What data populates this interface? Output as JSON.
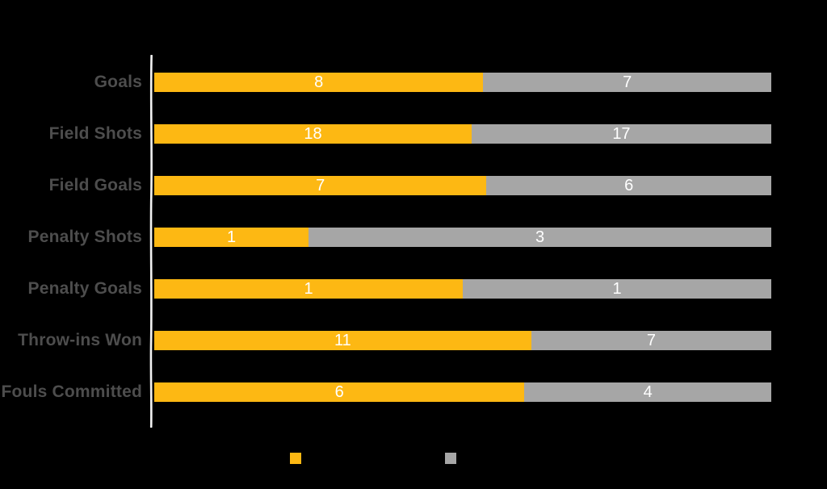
{
  "colors": {
    "background": "#000000",
    "series_yellow": "#fdb813",
    "series_gray": "#a6a6a6",
    "category_label": "#4d4d4d",
    "value_label": "#ffffff",
    "axis_line": "#f2f2f2"
  },
  "chart_data": {
    "type": "bar",
    "orientation": "horizontal",
    "stacked": true,
    "normalized_to_100_percent": true,
    "title": "",
    "xlabel": "",
    "ylabel": "",
    "grid": "off",
    "categories": [
      "Goals",
      "Field Shots",
      "Field Goals",
      "Penalty Shots",
      "Penalty Goals",
      "Throw-ins Won",
      "Fouls Committed"
    ],
    "series": [
      {
        "name": "",
        "color": "#fdb813",
        "values": [
          8,
          18,
          7,
          1,
          1,
          11,
          6
        ]
      },
      {
        "name": "",
        "color": "#a6a6a6",
        "values": [
          7,
          17,
          6,
          3,
          1,
          7,
          4
        ]
      }
    ],
    "value_labels_shown": true,
    "legend": {
      "position": "bottom",
      "items": [
        {
          "label": "",
          "color": "#fdb813"
        },
        {
          "label": "",
          "color": "#a6a6a6"
        }
      ]
    }
  }
}
